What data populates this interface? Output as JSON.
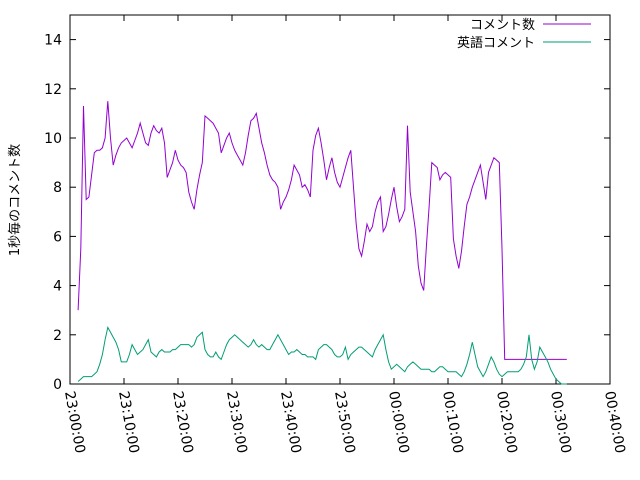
{
  "chart_data": {
    "type": "line",
    "title": "",
    "xlabel": "",
    "ylabel": "1秒毎のコメント数",
    "xlim": [
      "23:00:00",
      "00:40:00"
    ],
    "ylim": [
      0,
      15
    ],
    "x_tick_labels": [
      "23:00:00",
      "23:10:00",
      "23:20:00",
      "23:30:00",
      "23:40:00",
      "23:50:00",
      "00:00:00",
      "00:10:00",
      "00:20:00",
      "00:30:00",
      "00:40:00"
    ],
    "y_tick_labels": [
      "0",
      "2",
      "4",
      "6",
      "8",
      "10",
      "12",
      "14"
    ],
    "grid": false,
    "legend_position": "top-right",
    "x_minutes": [
      1.5,
      2.0,
      2.5,
      3.0,
      3.5,
      4.0,
      4.5,
      5.0,
      5.5,
      6.0,
      6.5,
      7.0,
      7.5,
      8.0,
      8.5,
      9.0,
      9.5,
      10.0,
      10.5,
      11.0,
      11.5,
      12.0,
      12.5,
      13.0,
      13.5,
      14.0,
      14.5,
      15.0,
      15.5,
      16.0,
      16.5,
      17.0,
      17.5,
      18.0,
      18.5,
      19.0,
      19.5,
      20.0,
      20.5,
      21.0,
      21.5,
      22.0,
      22.5,
      23.0,
      23.5,
      24.0,
      24.5,
      25.0,
      25.5,
      26.0,
      26.5,
      27.0,
      27.5,
      28.0,
      28.5,
      29.0,
      29.5,
      30.0,
      30.5,
      31.0,
      31.5,
      32.0,
      32.5,
      33.0,
      33.5,
      34.0,
      34.5,
      35.0,
      35.5,
      36.0,
      36.5,
      37.0,
      37.5,
      38.0,
      38.5,
      39.0,
      39.5,
      40.0,
      40.5,
      41.0,
      41.5,
      42.0,
      42.5,
      43.0,
      43.5,
      44.0,
      44.5,
      45.0,
      45.5,
      46.0,
      46.5,
      47.0,
      47.5,
      48.0,
      48.5,
      49.0,
      49.5,
      50.0,
      50.5,
      51.0,
      51.5,
      52.0,
      52.5,
      53.0,
      53.5,
      54.0,
      54.5,
      55.0,
      55.5,
      56.0,
      56.5,
      57.0,
      57.5,
      58.0,
      58.5,
      59.0,
      59.5,
      60.0,
      60.5,
      61.0,
      61.5,
      62.0,
      62.5,
      63.0,
      63.5,
      64.0,
      64.5,
      65.0,
      65.5,
      66.0,
      66.5,
      67.0,
      67.5,
      68.0,
      68.5,
      69.0,
      69.5,
      70.0,
      70.5,
      71.0,
      71.5,
      72.0,
      72.5,
      73.0,
      73.5,
      74.0,
      74.5,
      75.0,
      75.5,
      76.0,
      76.5,
      77.0,
      77.5,
      78.0,
      78.5,
      79.0,
      79.5,
      80.0,
      80.5,
      81.0,
      81.5,
      82.0,
      82.5,
      83.0,
      83.5,
      84.0,
      84.5,
      85.0,
      85.5,
      86.0,
      86.5,
      87.0,
      87.5,
      88.0,
      88.5,
      89.0,
      89.5,
      90.0,
      90.5,
      91.0,
      91.5,
      92.0
    ],
    "series": [
      {
        "name": "コメント数",
        "color": "#9400d3",
        "values": [
          3.0,
          5.5,
          11.3,
          7.5,
          7.6,
          8.5,
          9.4,
          9.5,
          9.5,
          9.6,
          10.0,
          11.5,
          10.0,
          8.9,
          9.3,
          9.6,
          9.8,
          9.9,
          10.0,
          9.8,
          9.6,
          9.9,
          10.2,
          10.6,
          10.2,
          9.8,
          9.7,
          10.2,
          10.5,
          10.3,
          10.2,
          10.4,
          9.8,
          8.4,
          8.7,
          9.0,
          9.5,
          9.1,
          8.9,
          8.8,
          8.6,
          7.8,
          7.4,
          7.1,
          7.9,
          8.5,
          9.0,
          10.9,
          10.8,
          10.7,
          10.6,
          10.4,
          10.2,
          9.4,
          9.7,
          10.0,
          10.2,
          9.8,
          9.5,
          9.3,
          9.1,
          8.9,
          9.4,
          10.1,
          10.7,
          10.8,
          11.0,
          10.4,
          9.8,
          9.4,
          8.9,
          8.5,
          8.3,
          8.2,
          8.0,
          7.1,
          7.4,
          7.6,
          7.9,
          8.3,
          8.9,
          8.7,
          8.5,
          8.0,
          8.1,
          7.9,
          7.6,
          9.5,
          10.1,
          10.4,
          9.8,
          9.1,
          8.3,
          8.8,
          9.2,
          8.6,
          8.2,
          8.0,
          8.4,
          8.8,
          9.2,
          9.5,
          8.0,
          6.5,
          5.5,
          5.2,
          5.8,
          6.5,
          6.2,
          6.4,
          7.0,
          7.4,
          7.6,
          6.2,
          6.4,
          6.9,
          7.5,
          8.0,
          7.2,
          6.6,
          6.8,
          7.1,
          10.5,
          7.8,
          7.0,
          6.2,
          4.8,
          4.1,
          3.8,
          5.6,
          7.2,
          9.0,
          8.9,
          8.8,
          8.3,
          8.5,
          8.6,
          8.5,
          8.4,
          5.9,
          5.2,
          4.7,
          5.4,
          6.4,
          7.3,
          7.6,
          8.0,
          8.3,
          8.6,
          8.9,
          8.2,
          7.5,
          8.6,
          8.9,
          9.2,
          9.1,
          9.0,
          5.5,
          1.0,
          1.0,
          1.0,
          1.0,
          1.0,
          1.0,
          1.0,
          1.0,
          1.0,
          1.0,
          1.0,
          1.0,
          1.0,
          1.0,
          1.0,
          1.0,
          1.0,
          1.0,
          1.0,
          1.0,
          1.0,
          1.0,
          1.0,
          1.0
        ]
      },
      {
        "name": "英語コメント",
        "color": "#009e73",
        "values": [
          0.1,
          0.2,
          0.3,
          0.3,
          0.3,
          0.3,
          0.4,
          0.5,
          0.8,
          1.2,
          1.8,
          2.3,
          2.1,
          1.9,
          1.7,
          1.4,
          0.9,
          0.9,
          0.9,
          1.2,
          1.6,
          1.4,
          1.2,
          1.3,
          1.4,
          1.6,
          1.8,
          1.3,
          1.2,
          1.1,
          1.3,
          1.4,
          1.3,
          1.3,
          1.3,
          1.4,
          1.4,
          1.5,
          1.6,
          1.6,
          1.6,
          1.6,
          1.5,
          1.6,
          1.9,
          2.0,
          2.1,
          1.4,
          1.2,
          1.1,
          1.1,
          1.3,
          1.1,
          1.0,
          1.3,
          1.6,
          1.8,
          1.9,
          2.0,
          1.9,
          1.8,
          1.7,
          1.6,
          1.5,
          1.6,
          1.8,
          1.6,
          1.5,
          1.6,
          1.5,
          1.4,
          1.4,
          1.6,
          1.8,
          2.0,
          1.8,
          1.6,
          1.4,
          1.2,
          1.3,
          1.3,
          1.4,
          1.3,
          1.2,
          1.2,
          1.1,
          1.1,
          1.1,
          1.0,
          1.4,
          1.5,
          1.6,
          1.6,
          1.5,
          1.4,
          1.2,
          1.1,
          1.1,
          1.2,
          1.5,
          1.0,
          1.2,
          1.3,
          1.4,
          1.5,
          1.5,
          1.4,
          1.3,
          1.2,
          1.1,
          1.4,
          1.6,
          1.8,
          2.0,
          1.4,
          0.9,
          0.6,
          0.7,
          0.8,
          0.7,
          0.6,
          0.5,
          0.7,
          0.8,
          0.9,
          0.8,
          0.7,
          0.6,
          0.6,
          0.6,
          0.6,
          0.5,
          0.5,
          0.6,
          0.7,
          0.7,
          0.6,
          0.5,
          0.5,
          0.5,
          0.5,
          0.4,
          0.3,
          0.5,
          0.8,
          1.2,
          1.7,
          1.2,
          0.7,
          0.5,
          0.3,
          0.5,
          0.8,
          1.1,
          0.9,
          0.6,
          0.4,
          0.3,
          0.4,
          0.5,
          0.5,
          0.5,
          0.5,
          0.5,
          0.6,
          0.8,
          1.1,
          2.0,
          1.0,
          0.6,
          0.9,
          1.5,
          1.3,
          1.1,
          0.9,
          0.6,
          0.4,
          0.2,
          0.1,
          0.0,
          0.0,
          0.0
        ]
      }
    ]
  }
}
